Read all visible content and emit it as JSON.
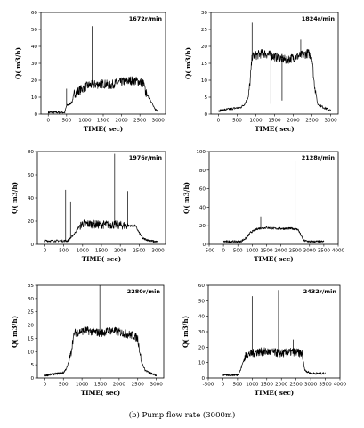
{
  "caption": "(b) Pump flow rate (3000m)",
  "chart_data": [
    {
      "type": "line",
      "title": "1672r/min",
      "xlabel": "TIME( sec)",
      "ylabel": "Q( m3/h)",
      "xlim": [
        -200,
        3200
      ],
      "ylim": [
        0,
        60
      ],
      "xticks": [
        "0",
        "500",
        "1000",
        "1500",
        "2000",
        "2500",
        "3000"
      ],
      "yticks": [
        "0",
        "10",
        "20",
        "30",
        "40",
        "50",
        "60"
      ],
      "x": [
        0,
        450,
        500,
        650,
        700,
        1000,
        1100,
        1500,
        1700,
        1800,
        2000,
        2300,
        2500,
        2600,
        2650,
        2800,
        2900,
        3000
      ],
      "y": [
        1,
        1,
        5,
        7,
        12,
        16,
        17,
        18,
        17,
        18,
        19,
        20,
        19,
        18,
        13,
        8,
        3,
        2
      ],
      "spikes": [
        {
          "x": 1200,
          "y": 52
        },
        {
          "x": 500,
          "y": 15
        }
      ]
    },
    {
      "type": "line",
      "title": "1824r/min",
      "xlabel": "TIME( sec)",
      "ylabel": "Q( m3/h)",
      "xlim": [
        -200,
        3200
      ],
      "ylim": [
        0,
        30
      ],
      "xticks": [
        "0",
        "500",
        "1000",
        "1500",
        "2000",
        "2500",
        "3000"
      ],
      "yticks": [
        "0",
        "5",
        "10",
        "15",
        "20",
        "25",
        "30"
      ],
      "x": [
        0,
        600,
        700,
        800,
        850,
        900,
        1200,
        1500,
        1800,
        2100,
        2400,
        2500,
        2550,
        2650,
        2800,
        3000
      ],
      "y": [
        1,
        2,
        3,
        5,
        10,
        17,
        18,
        17,
        16,
        17,
        18,
        17,
        10,
        3,
        2,
        1
      ],
      "spikes": [
        {
          "x": 900,
          "y": 27
        },
        {
          "x": 2200,
          "y": 22
        },
        {
          "x": 1400,
          "y": 3
        },
        {
          "x": 1700,
          "y": 4
        }
      ]
    },
    {
      "type": "line",
      "title": "1976r/min",
      "xlabel": "TIME( sec)",
      "ylabel": "Q( m3/h)",
      "xlim": [
        -200,
        3200
      ],
      "ylim": [
        0,
        80
      ],
      "xticks": [
        "0",
        "500",
        "1000",
        "1500",
        "2000",
        "2500",
        "3000"
      ],
      "yticks": [
        "0",
        "20",
        "40",
        "60",
        "80"
      ],
      "x": [
        0,
        600,
        700,
        800,
        900,
        1000,
        1400,
        1800,
        2200,
        2400,
        2500,
        2600,
        2800,
        3000
      ],
      "y": [
        3,
        3,
        6,
        10,
        15,
        18,
        17,
        17,
        16,
        16,
        10,
        5,
        3,
        2
      ],
      "spikes": [
        {
          "x": 1850,
          "y": 78
        },
        {
          "x": 550,
          "y": 47
        },
        {
          "x": 680,
          "y": 37
        },
        {
          "x": 2200,
          "y": 46
        }
      ]
    },
    {
      "type": "line",
      "title": "2128r/min",
      "xlabel": "TIME( sec)",
      "ylabel": "Q( m3/h)",
      "xlim": [
        -500,
        4000
      ],
      "ylim": [
        0,
        100
      ],
      "xticks": [
        "-500",
        "0",
        "500",
        "1000",
        "1500",
        "2000",
        "2500",
        "3000",
        "3500",
        "4000"
      ],
      "yticks": [
        "0",
        "20",
        "40",
        "60",
        "80",
        "100"
      ],
      "x": [
        0,
        600,
        800,
        950,
        1200,
        1500,
        1800,
        2100,
        2400,
        2600,
        2800,
        3000,
        3500
      ],
      "y": [
        3,
        3,
        7,
        13,
        17,
        18,
        17,
        17,
        17,
        16,
        4,
        3,
        3
      ],
      "spikes": [
        {
          "x": 2500,
          "y": 90
        },
        {
          "x": 1300,
          "y": 30
        }
      ]
    },
    {
      "type": "line",
      "title": "2280r/min",
      "xlabel": "TIME( sec)",
      "ylabel": "Q( m3/h)",
      "xlim": [
        -200,
        3200
      ],
      "ylim": [
        0,
        35
      ],
      "xticks": [
        "0",
        "500",
        "1000",
        "1500",
        "2000",
        "2500",
        "3000"
      ],
      "yticks": [
        "0",
        "5",
        "10",
        "15",
        "20",
        "25",
        "30",
        "35"
      ],
      "x": [
        0,
        500,
        600,
        700,
        750,
        800,
        1100,
        1500,
        1800,
        2100,
        2400,
        2500,
        2600,
        2700,
        2800,
        3000
      ],
      "y": [
        1,
        2,
        4,
        9,
        14,
        17,
        18,
        17,
        18,
        17,
        16,
        15,
        6,
        3,
        2,
        1
      ],
      "spikes": [
        {
          "x": 1480,
          "y": 35
        }
      ]
    },
    {
      "type": "line",
      "title": "2432r/min",
      "xlabel": "TIME( sec)",
      "ylabel": "Q( m3/h)",
      "xlim": [
        -500,
        4000
      ],
      "ylim": [
        0,
        60
      ],
      "xticks": [
        "-500",
        "0",
        "500",
        "1000",
        "1500",
        "2000",
        "2500",
        "3000",
        "3500",
        "4000"
      ],
      "yticks": [
        "0",
        "10",
        "20",
        "30",
        "40",
        "50",
        "60"
      ],
      "x": [
        0,
        500,
        600,
        700,
        800,
        1200,
        1600,
        2000,
        2400,
        2700,
        2800,
        3000,
        3500
      ],
      "y": [
        2,
        2,
        5,
        11,
        15,
        17,
        17,
        16,
        17,
        16,
        5,
        3,
        3
      ],
      "spikes": [
        {
          "x": 1000,
          "y": 53
        },
        {
          "x": 1900,
          "y": 57
        },
        {
          "x": 2400,
          "y": 25
        }
      ]
    }
  ]
}
